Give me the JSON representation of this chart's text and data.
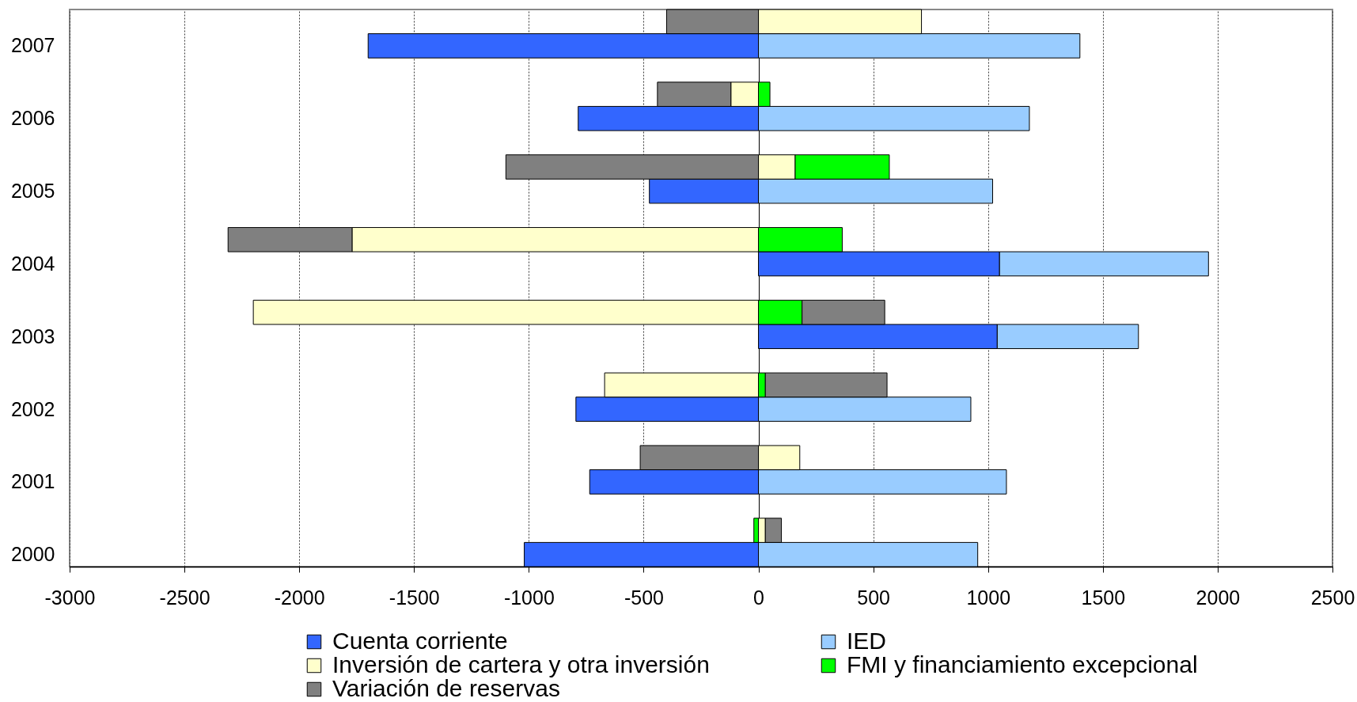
{
  "chart_data": {
    "type": "bar",
    "orientation": "horizontal",
    "stacked": true,
    "categories": [
      null,
      "2007",
      null,
      "2006",
      null,
      "2005",
      null,
      "2004",
      null,
      "2003",
      null,
      "2002",
      null,
      "2001",
      null,
      "2000"
    ],
    "series": [
      {
        "name": "Cuenta corriente",
        "color": "#3366ff",
        "values": [
          null,
          -1700,
          null,
          -785,
          null,
          -475,
          null,
          1050,
          null,
          1040,
          null,
          -795,
          null,
          -735,
          null,
          -1020
        ]
      },
      {
        "name": "IED",
        "color": "#99ccff",
        "values": [
          null,
          1400,
          null,
          1180,
          null,
          1020,
          null,
          910,
          null,
          615,
          null,
          925,
          null,
          1080,
          null,
          955
        ]
      },
      {
        "name": "Inversión de cartera y otra inversión",
        "color": "#ffffcc",
        "values": [
          710,
          null,
          -120,
          null,
          160,
          null,
          -1770,
          null,
          -2200,
          null,
          -670,
          null,
          180,
          null,
          30,
          null
        ]
      },
      {
        "name": "FMI y financiamiento excepcional",
        "color": "#00ff00",
        "values": [
          null,
          null,
          50,
          null,
          410,
          null,
          365,
          null,
          190,
          null,
          30,
          null,
          null,
          null,
          -20,
          null
        ]
      },
      {
        "name": "Variación de reservas",
        "color": "#808080",
        "values": [
          -400,
          null,
          -320,
          null,
          -1100,
          null,
          -540,
          null,
          360,
          null,
          530,
          null,
          -515,
          null,
          70,
          null
        ]
      }
    ],
    "xlim": [
      -3000,
      2500
    ],
    "xticks": [
      -3000,
      -2500,
      -2000,
      -1500,
      -1000,
      -500,
      0,
      500,
      1000,
      1500,
      2000,
      2500
    ],
    "grid": "x",
    "legend": "bottom"
  }
}
